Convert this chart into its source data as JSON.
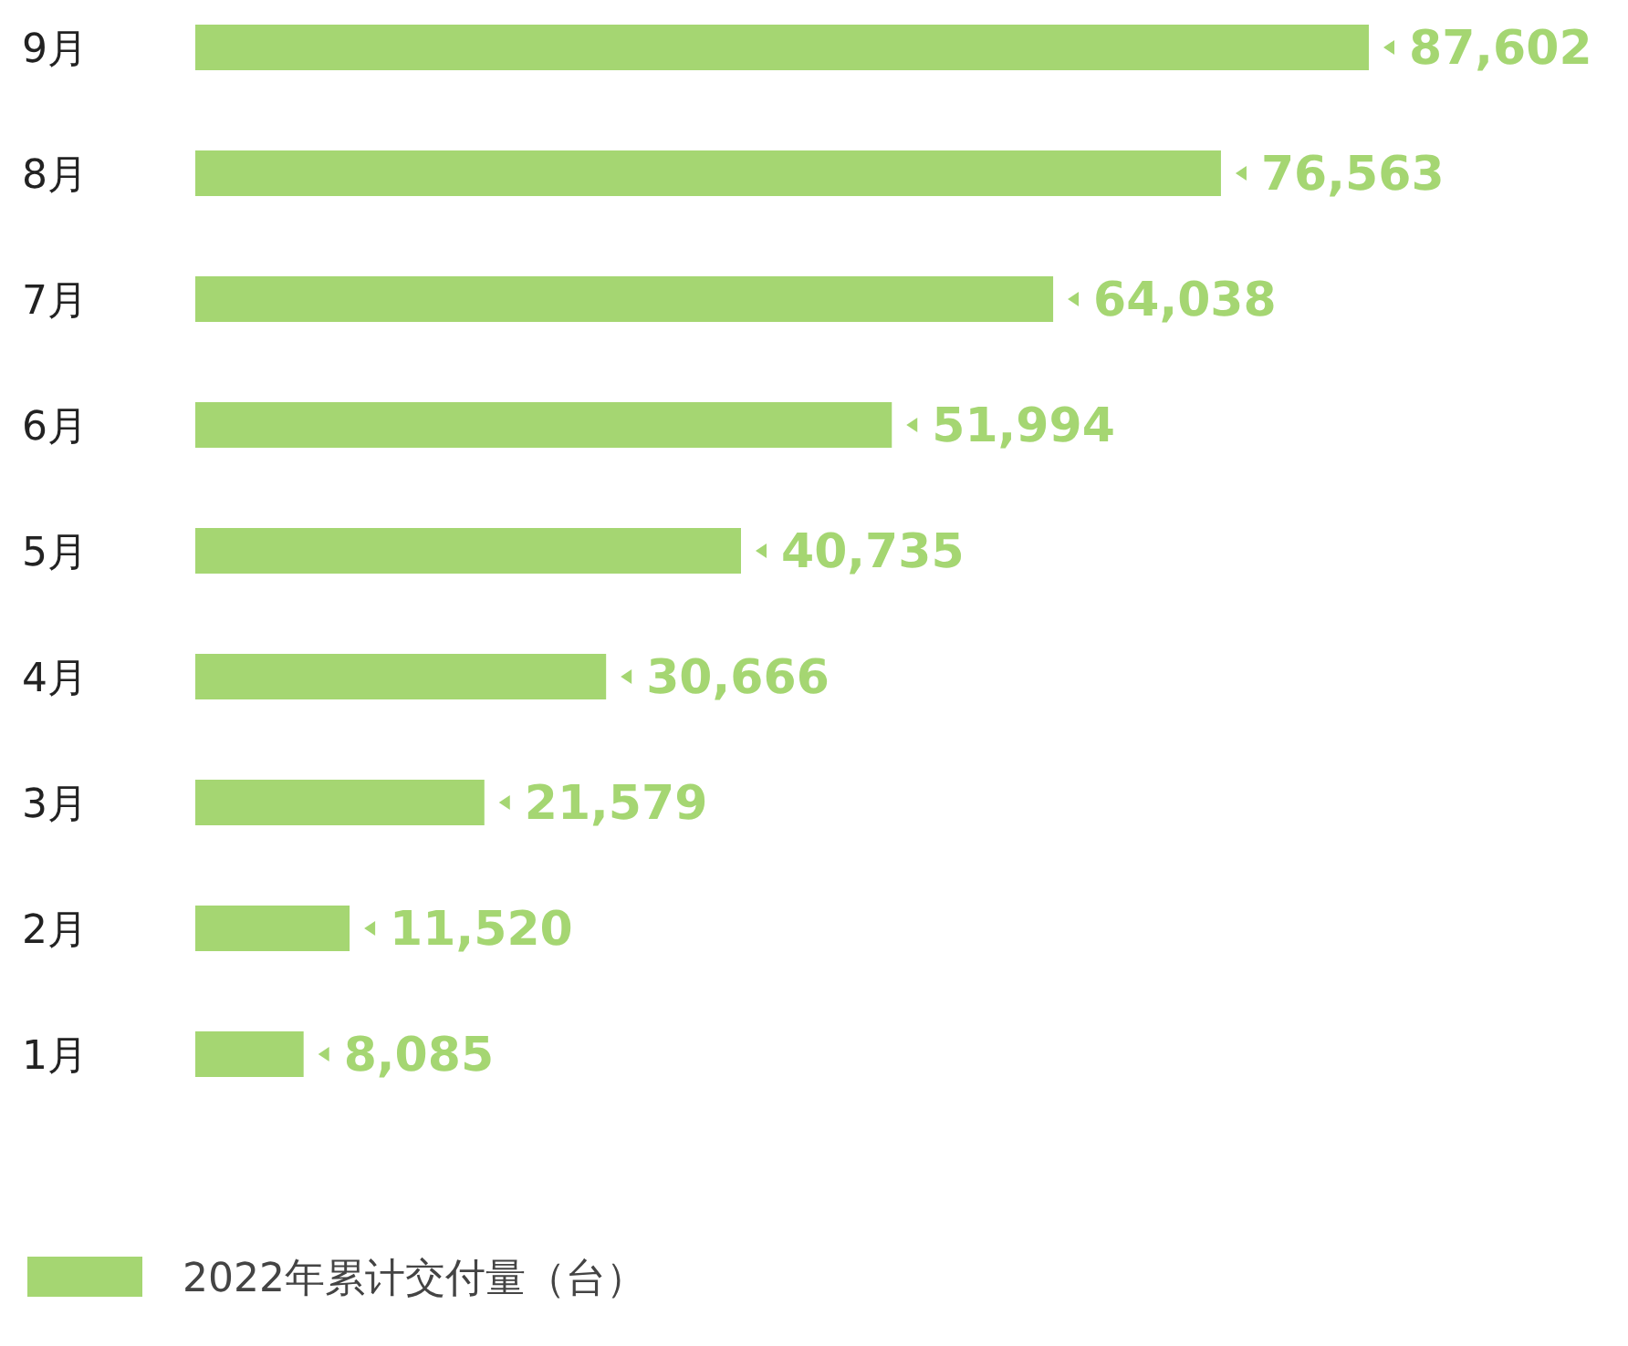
{
  "chart_data": {
    "type": "bar",
    "orientation": "horizontal",
    "categories": [
      "9月",
      "8月",
      "7月",
      "6月",
      "5月",
      "4月",
      "3月",
      "2月",
      "1月"
    ],
    "series": [
      {
        "name": "2022年累计交付量（台）",
        "color": "#a5d672",
        "values": [
          87602,
          76563,
          64038,
          51994,
          40735,
          30666,
          21579,
          11520,
          8085
        ],
        "value_labels": [
          "87,602",
          "76,563",
          "64,038",
          "51,994",
          "40,735",
          "30,666",
          "21,579",
          "11,520",
          "8,085"
        ]
      }
    ],
    "legend": "bottom left"
  }
}
